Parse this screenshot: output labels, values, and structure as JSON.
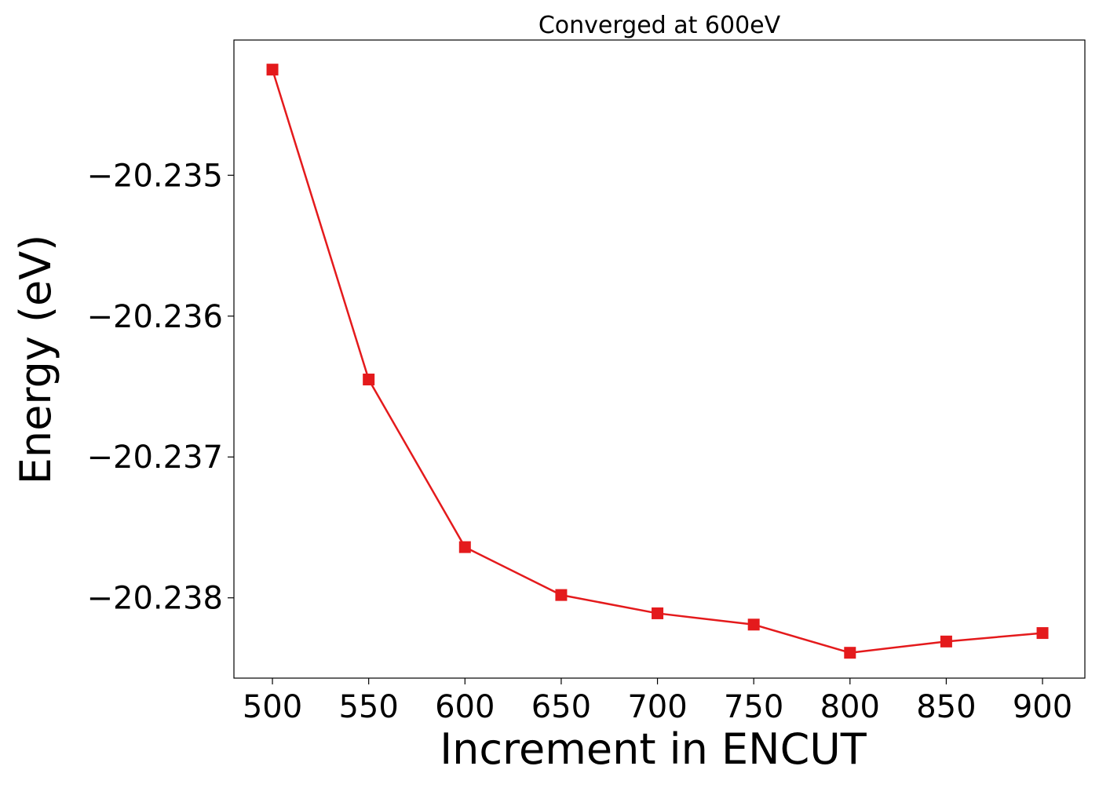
{
  "chart_data": {
    "type": "line",
    "title": "Converged at 600eV",
    "xlabel": "Increment in ENCUT",
    "ylabel": "Energy (eV)",
    "x": [
      500,
      550,
      600,
      650,
      700,
      750,
      800,
      850,
      900
    ],
    "series": [
      {
        "values": [
          -20.23425,
          -20.23645,
          -20.23764,
          -20.23798,
          -20.23811,
          -20.23819,
          -20.23839,
          -20.23831,
          -20.23825
        ],
        "color": "#e41a1c",
        "marker": "square"
      }
    ],
    "xticks": [
      500,
      550,
      600,
      650,
      700,
      750,
      800,
      850,
      900
    ],
    "xtick_labels": [
      "500",
      "550",
      "600",
      "650",
      "700",
      "750",
      "800",
      "850",
      "900"
    ],
    "yticks": [
      -20.235,
      -20.236,
      -20.237,
      -20.238
    ],
    "ytick_labels": [
      "−20.235",
      "−20.236",
      "−20.237",
      "−20.238"
    ],
    "xlim": [
      480,
      922
    ],
    "ylim": [
      -20.23857,
      -20.23404
    ],
    "grid": false,
    "legend": "none"
  }
}
